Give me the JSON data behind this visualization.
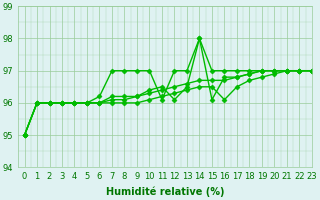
{
  "x": [
    0,
    1,
    2,
    3,
    4,
    5,
    6,
    7,
    8,
    9,
    10,
    11,
    12,
    13,
    14,
    15,
    16,
    17,
    18,
    19,
    20,
    21,
    22,
    23
  ],
  "series": [
    [
      95.0,
      96.0,
      96.0,
      96.0,
      96.0,
      96.0,
      96.2,
      97.0,
      97.0,
      97.0,
      97.0,
      96.1,
      97.0,
      97.0,
      98.0,
      97.0,
      97.0,
      97.0,
      97.0,
      97.0,
      97.0,
      97.0,
      97.0,
      97.0
    ],
    [
      95.0,
      96.0,
      96.0,
      96.0,
      96.0,
      96.0,
      96.0,
      96.2,
      96.2,
      96.2,
      96.4,
      96.5,
      96.1,
      96.5,
      98.0,
      96.1,
      96.8,
      96.8,
      96.9,
      97.0,
      97.0,
      97.0,
      97.0,
      97.0
    ],
    [
      95.0,
      96.0,
      96.0,
      96.0,
      96.0,
      96.0,
      96.0,
      96.1,
      96.1,
      96.2,
      96.3,
      96.4,
      96.5,
      96.6,
      96.7,
      96.7,
      96.7,
      96.8,
      96.9,
      97.0,
      97.0,
      97.0,
      97.0,
      97.0
    ],
    [
      95.0,
      96.0,
      96.0,
      96.0,
      96.0,
      96.0,
      96.0,
      96.0,
      96.0,
      96.0,
      96.1,
      96.2,
      96.3,
      96.4,
      96.5,
      96.5,
      96.1,
      96.5,
      96.7,
      96.8,
      96.9,
      97.0,
      97.0,
      97.0
    ]
  ],
  "line_color": "#00bb00",
  "marker": "D",
  "markersize": 2.5,
  "linewidth": 1.0,
  "bg_color": "#dff2f2",
  "grid_color": "#99cc99",
  "text_color": "#007700",
  "xlabel": "Humidité relative (%)",
  "ylim": [
    94,
    99
  ],
  "xlim": [
    -0.5,
    23
  ],
  "yticks": [
    94,
    95,
    96,
    97,
    98,
    99
  ],
  "xticks": [
    0,
    1,
    2,
    3,
    4,
    5,
    6,
    7,
    8,
    9,
    10,
    11,
    12,
    13,
    14,
    15,
    16,
    17,
    18,
    19,
    20,
    21,
    22,
    23
  ],
  "xlabel_fontsize": 7.0,
  "tick_fontsize": 6.0,
  "minor_grid": true
}
